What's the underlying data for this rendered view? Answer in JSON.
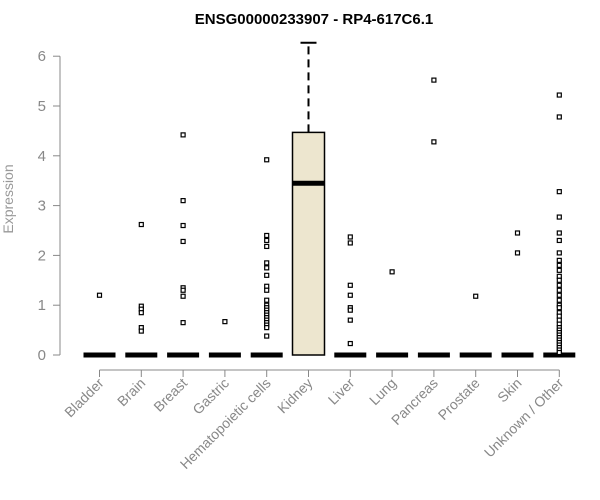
{
  "chart_data": {
    "type": "box",
    "title": "ENSG00000233907 - RP4-617C6.1",
    "xlabel": "",
    "ylabel": "Expression",
    "ylim": [
      0,
      6.3
    ],
    "yticks": [
      0,
      1,
      2,
      3,
      4,
      5,
      6
    ],
    "grid": false,
    "categories": [
      "Bladder",
      "Brain",
      "Breast",
      "Gastric",
      "Hematopoietic cells",
      "Kidney",
      "Liver",
      "Lung",
      "Pancreas",
      "Prostate",
      "Skin",
      "Unknown / Other"
    ],
    "box_fill": "#ede6cf",
    "boxes": [
      {
        "category": "Bladder",
        "q1": 0,
        "median": 0,
        "q3": 0,
        "whisker_low": 0,
        "whisker_high": 0,
        "outliers": [
          1.2
        ]
      },
      {
        "category": "Brain",
        "q1": 0,
        "median": 0,
        "q3": 0,
        "whisker_low": 0,
        "whisker_high": 0,
        "outliers": [
          2.62,
          0.98,
          0.92,
          0.85,
          0.55,
          0.48
        ]
      },
      {
        "category": "Breast",
        "q1": 0,
        "median": 0,
        "q3": 0,
        "whisker_low": 0,
        "whisker_high": 0,
        "outliers": [
          4.42,
          3.1,
          2.6,
          2.28,
          1.35,
          1.3,
          1.18,
          0.65
        ]
      },
      {
        "category": "Gastric",
        "q1": 0,
        "median": 0,
        "q3": 0,
        "whisker_low": 0,
        "whisker_high": 0,
        "outliers": [
          0.67
        ]
      },
      {
        "category": "Hematopoietic cells",
        "q1": 0,
        "median": 0,
        "q3": 0,
        "whisker_low": 0,
        "whisker_high": 0,
        "outliers": [
          3.92,
          2.4,
          2.3,
          2.18,
          1.85,
          1.75,
          1.6,
          1.38,
          1.3,
          1.1,
          1.0,
          0.95,
          0.9,
          0.85,
          0.8,
          0.75,
          0.7,
          0.65,
          0.6,
          0.55,
          0.38
        ]
      },
      {
        "category": "Kidney",
        "q1": 0,
        "median": 3.45,
        "q3": 4.47,
        "whisker_low": 0,
        "whisker_high": 6.27,
        "outliers": []
      },
      {
        "category": "Liver",
        "q1": 0,
        "median": 0,
        "q3": 0,
        "whisker_low": 0,
        "whisker_high": 0,
        "outliers": [
          2.37,
          2.25,
          1.4,
          1.2,
          0.95,
          0.9,
          0.7,
          0.23
        ]
      },
      {
        "category": "Lung",
        "q1": 0,
        "median": 0,
        "q3": 0,
        "whisker_low": 0,
        "whisker_high": 0,
        "outliers": [
          1.67
        ]
      },
      {
        "category": "Pancreas",
        "q1": 0,
        "median": 0,
        "q3": 0,
        "whisker_low": 0,
        "whisker_high": 0,
        "outliers": [
          5.52,
          4.28
        ]
      },
      {
        "category": "Prostate",
        "q1": 0,
        "median": 0,
        "q3": 0,
        "whisker_low": 0,
        "whisker_high": 0,
        "outliers": [
          1.18
        ]
      },
      {
        "category": "Skin",
        "q1": 0,
        "median": 0,
        "q3": 0,
        "whisker_low": 0,
        "whisker_high": 0,
        "outliers": [
          2.45,
          2.05
        ]
      },
      {
        "category": "Unknown / Other",
        "q1": 0,
        "median": 0,
        "q3": 0,
        "whisker_low": 0,
        "whisker_high": 0,
        "outliers": [
          5.22,
          4.78,
          3.28,
          2.77,
          2.45,
          2.3,
          2.05,
          1.9,
          1.8,
          1.7,
          1.58,
          1.5,
          1.4,
          1.3,
          1.2,
          1.1,
          1.0,
          0.95,
          0.85,
          0.78,
          0.7,
          0.62,
          0.55,
          0.5,
          0.45,
          0.4,
          0.35,
          0.3,
          0.25,
          0.2,
          0.15,
          0.1,
          0.05
        ]
      }
    ]
  }
}
